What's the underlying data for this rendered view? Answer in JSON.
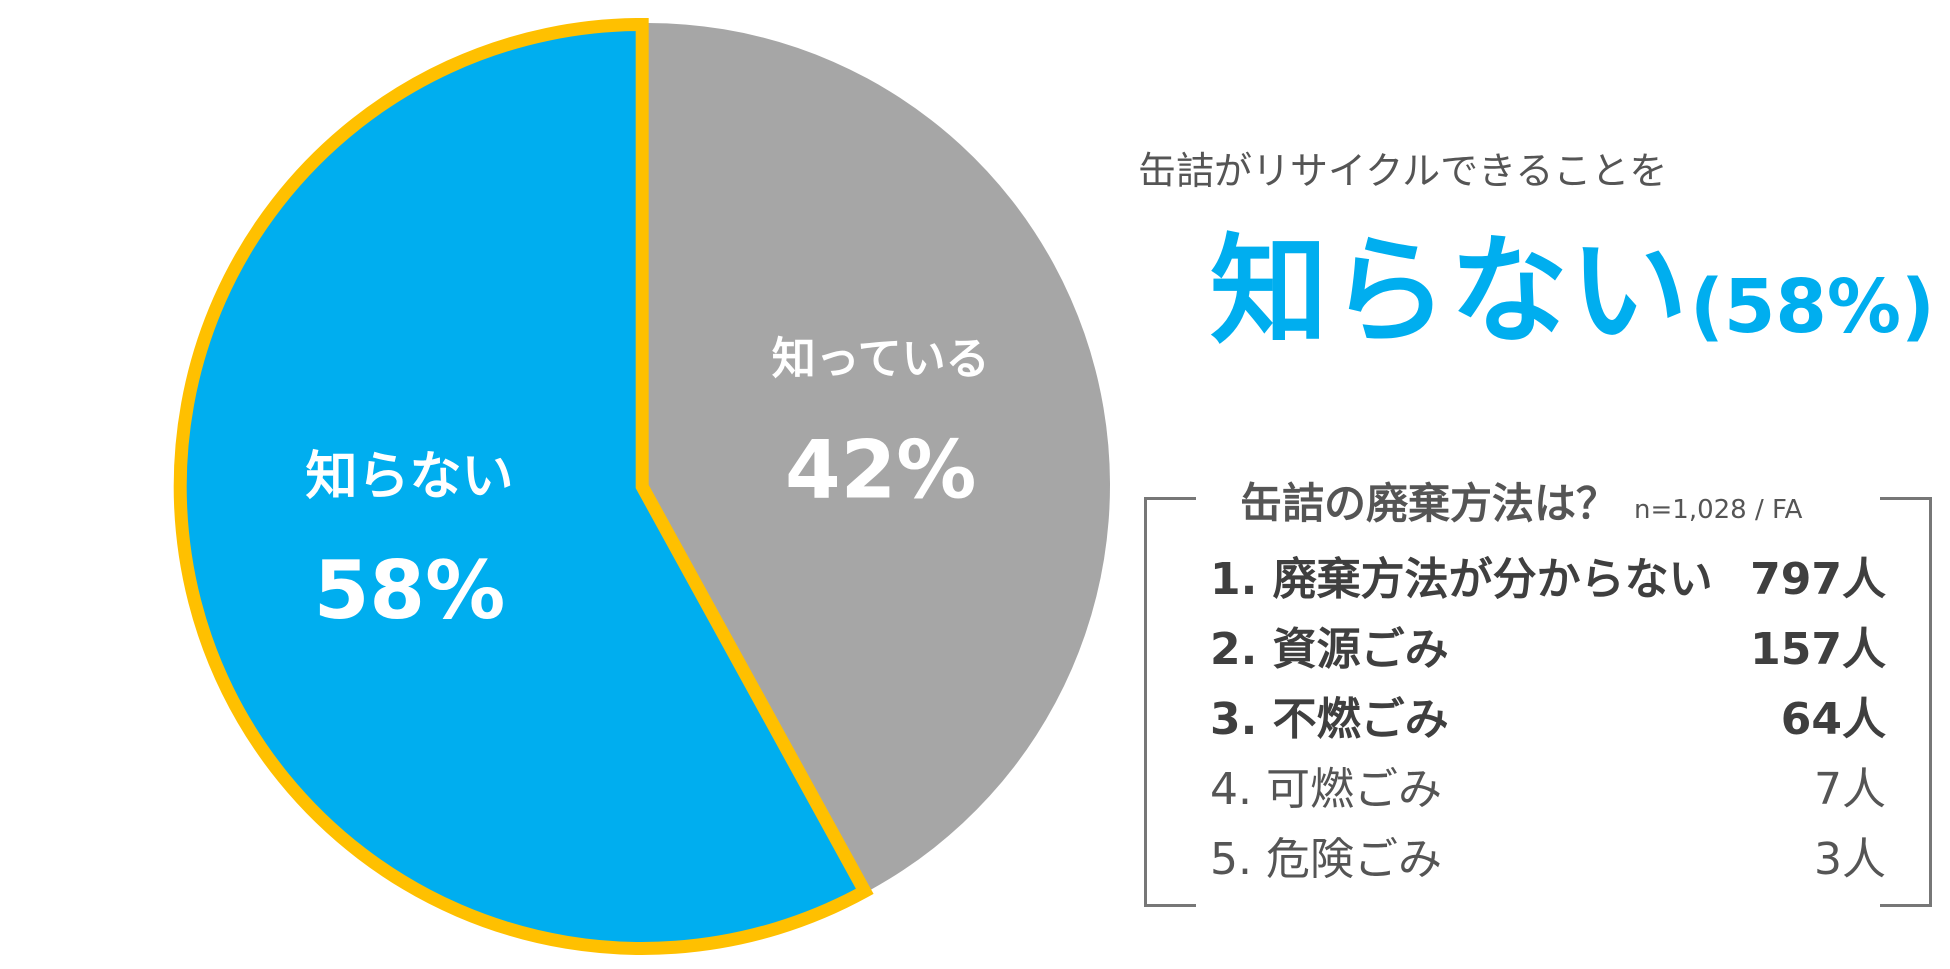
{
  "subtitle": "缶詰がリサイクルできることを",
  "headline": {
    "main": "知らない",
    "pct": "(58%)"
  },
  "box": {
    "heading": "缶詰の廃棄方法は？",
    "sample": "n=1,028 / FA",
    "items": [
      {
        "label": "1. 廃棄方法が分からない",
        "value": "797人",
        "bold": true
      },
      {
        "label": "2. 資源ごみ",
        "value": "157人",
        "bold": true
      },
      {
        "label": "3. 不燃ごみ",
        "value": "64人",
        "bold": true
      },
      {
        "label": "4. 可燃ごみ",
        "value": "7人",
        "bold": false
      },
      {
        "label": "5. 危険ごみ",
        "value": "3人",
        "bold": false
      }
    ]
  },
  "chart_data": {
    "type": "pie",
    "title": "",
    "slices": [
      {
        "label": "知っている",
        "value": 42,
        "value_label": "42%",
        "color": "#a6a6a6",
        "highlight": false
      },
      {
        "label": "知らない",
        "value": 58,
        "value_label": "58%",
        "color": "#00aeef",
        "highlight": true,
        "outline_color": "#ffc000"
      }
    ]
  }
}
